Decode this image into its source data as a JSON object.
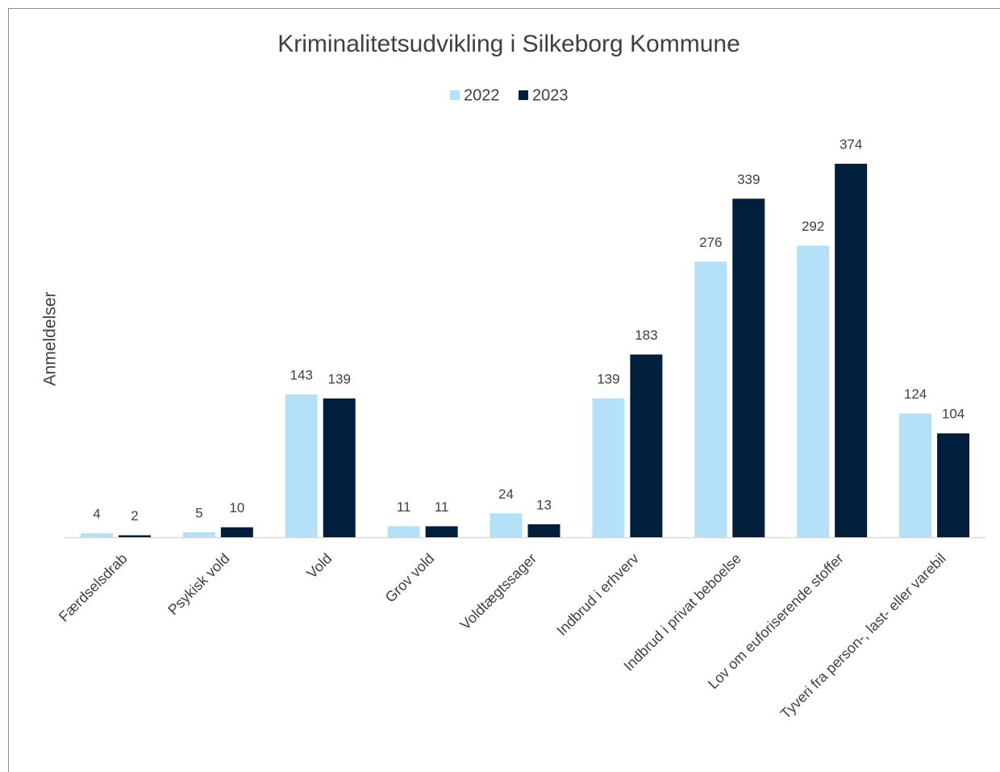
{
  "chart_data": {
    "type": "bar",
    "title": "Kriminalitetsudvikling i Silkeborg Kommune",
    "y_label": "Anmeldelser",
    "categories": [
      "Færdselsdrab",
      "Psykisk vold",
      "Vold",
      "Grov vold",
      "Voldtægtssager",
      "Indbrud i erhverv",
      "Indbrud i privat beboelse",
      "Lov om euforiserende stoffer",
      "Tyveri fra person-, last- eller varebil"
    ],
    "series": [
      {
        "name": "2022",
        "color": "#b4e1f8",
        "values": [
          4,
          5,
          143,
          11,
          24,
          139,
          276,
          292,
          124
        ]
      },
      {
        "name": "2023",
        "color": "#021e3d",
        "values": [
          2,
          10,
          139,
          11,
          13,
          183,
          339,
          374,
          104
        ]
      }
    ],
    "legend": "top"
  }
}
